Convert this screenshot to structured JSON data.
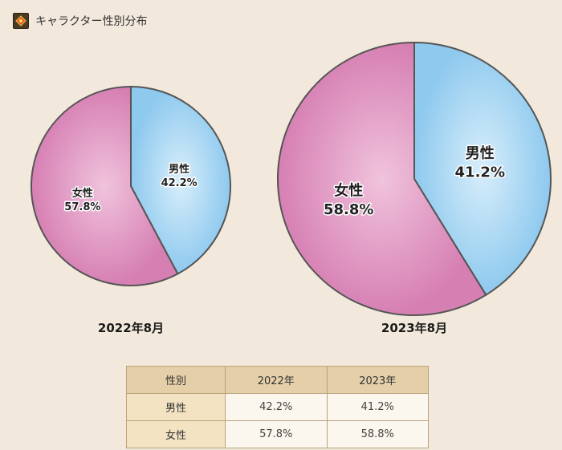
{
  "header": {
    "title": "キャラクター性別分布",
    "icon": "diamond-emblem-icon"
  },
  "chart_data": [
    {
      "type": "pie",
      "title": "2022年8月",
      "slices": [
        {
          "label": "男性",
          "value": 42.2,
          "display": "42.2%",
          "color": "#8ec9ee"
        },
        {
          "label": "女性",
          "value": 57.8,
          "display": "57.8%",
          "color": "#d67fb3"
        }
      ]
    },
    {
      "type": "pie",
      "title": "2023年8月",
      "slices": [
        {
          "label": "男性",
          "value": 41.2,
          "display": "41.2%",
          "color": "#8ec9ee"
        },
        {
          "label": "女性",
          "value": 58.8,
          "display": "58.8%",
          "color": "#d67fb3"
        }
      ]
    }
  ],
  "table": {
    "headers": [
      "性別",
      "2022年",
      "2023年"
    ],
    "rows": [
      {
        "label": "男性",
        "values": [
          "42.2%",
          "41.2%"
        ]
      },
      {
        "label": "女性",
        "values": [
          "57.8%",
          "58.8%"
        ]
      }
    ]
  }
}
